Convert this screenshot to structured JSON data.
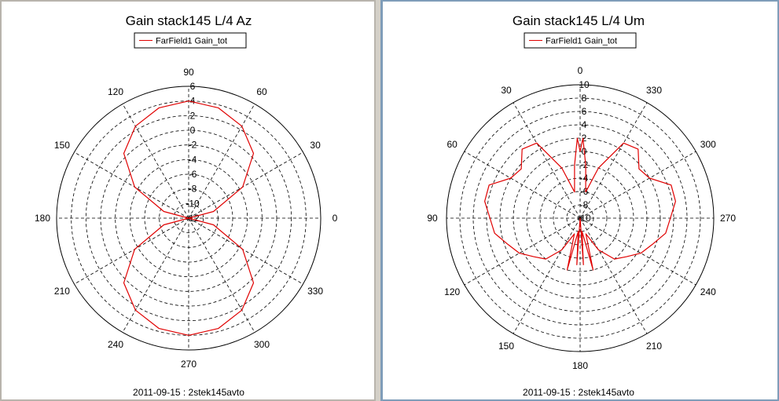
{
  "chart_data": [
    {
      "type": "polar-line",
      "title": "Gain stack145 L/4 Az",
      "legend": "FarField1 Gain_tot",
      "footer": "2011-09-15 : 2stek145avto",
      "angle_labels": [
        {
          "label": "0",
          "theta": 0
        },
        {
          "label": "30",
          "theta": 30
        },
        {
          "label": "60",
          "theta": 60
        },
        {
          "label": "90",
          "theta": 90
        },
        {
          "label": "120",
          "theta": 120
        },
        {
          "label": "150",
          "theta": 150
        },
        {
          "label": "180",
          "theta": 180
        },
        {
          "label": "210",
          "theta": 210
        },
        {
          "label": "240",
          "theta": 240
        },
        {
          "label": "270",
          "theta": 270
        },
        {
          "label": "300",
          "theta": 300
        },
        {
          "label": "330",
          "theta": 330
        }
      ],
      "radial_range": [
        -12,
        6
      ],
      "radial_ticks": [
        "6",
        "4",
        "2",
        "0",
        "-2",
        "-4",
        "-6",
        "-8",
        "-10",
        "-12"
      ],
      "series": [
        {
          "name": "FarField1 Gain_tot",
          "color": "#e00000",
          "theta": [
            0,
            15,
            30,
            45,
            60,
            75,
            90,
            105,
            120,
            135,
            150,
            165,
            180,
            195,
            210,
            225,
            240,
            255,
            270,
            285,
            300,
            315,
            330,
            345,
            360
          ],
          "r": [
            -12,
            -8.5,
            -3.5,
            0.5,
            2.5,
            3.6,
            4,
            3.6,
            2.5,
            0.5,
            -3.5,
            -8.5,
            -12,
            -8.5,
            -3.5,
            0.5,
            2.5,
            3.6,
            4,
            3.6,
            2.5,
            0.5,
            -3.5,
            -8.5,
            -12
          ]
        }
      ]
    },
    {
      "type": "polar-line",
      "title": "Gain stack145 L/4 Um",
      "legend": "FarField1 Gain_tot",
      "footer": "2011-09-15 : 2stek145avto",
      "angle_labels": [
        {
          "label": "0",
          "theta": 90
        },
        {
          "label": "30",
          "theta": 120
        },
        {
          "label": "60",
          "theta": 150
        },
        {
          "label": "90",
          "theta": 180
        },
        {
          "label": "120",
          "theta": 210
        },
        {
          "label": "150",
          "theta": 240
        },
        {
          "label": "180",
          "theta": 270
        },
        {
          "label": "210",
          "theta": 300
        },
        {
          "label": "240",
          "theta": 330
        },
        {
          "label": "270",
          "theta": 0
        },
        {
          "label": "300",
          "theta": 30
        },
        {
          "label": "330",
          "theta": 60
        }
      ],
      "radial_range": [
        -10,
        10
      ],
      "radial_ticks": [
        "10",
        "8",
        "6",
        "4",
        "2",
        "0",
        "-2",
        "-4",
        "-6",
        "-8",
        "-10"
      ],
      "series": [
        {
          "name": "FarField1 Gain_tot",
          "color": "#e00000",
          "theta": [
            0,
            10,
            20,
            30,
            40,
            50,
            60,
            70,
            78,
            84,
            88,
            90,
            92,
            96,
            102,
            110,
            120,
            130,
            140,
            150,
            160,
            170,
            180,
            190,
            200,
            210,
            220,
            230,
            240,
            250,
            256,
            262,
            266,
            270,
            274,
            278,
            284,
            290,
            300,
            310,
            320,
            330,
            340,
            350,
            360
          ],
          "r": [
            3.5,
            4.5,
            4.5,
            2,
            1.5,
            3.5,
            3,
            -2,
            -6,
            -2,
            2,
            0,
            2,
            -2,
            -6,
            -2,
            3,
            3.5,
            1.5,
            2,
            4.5,
            4.5,
            3.5,
            3,
            1.5,
            0.5,
            -1,
            -2,
            -4.5,
            -7.5,
            -2,
            -8,
            -3,
            -10,
            -3,
            -8,
            -2,
            -7.5,
            -4.5,
            -2,
            -1,
            0.5,
            1.5,
            3,
            3.5
          ]
        }
      ]
    }
  ]
}
